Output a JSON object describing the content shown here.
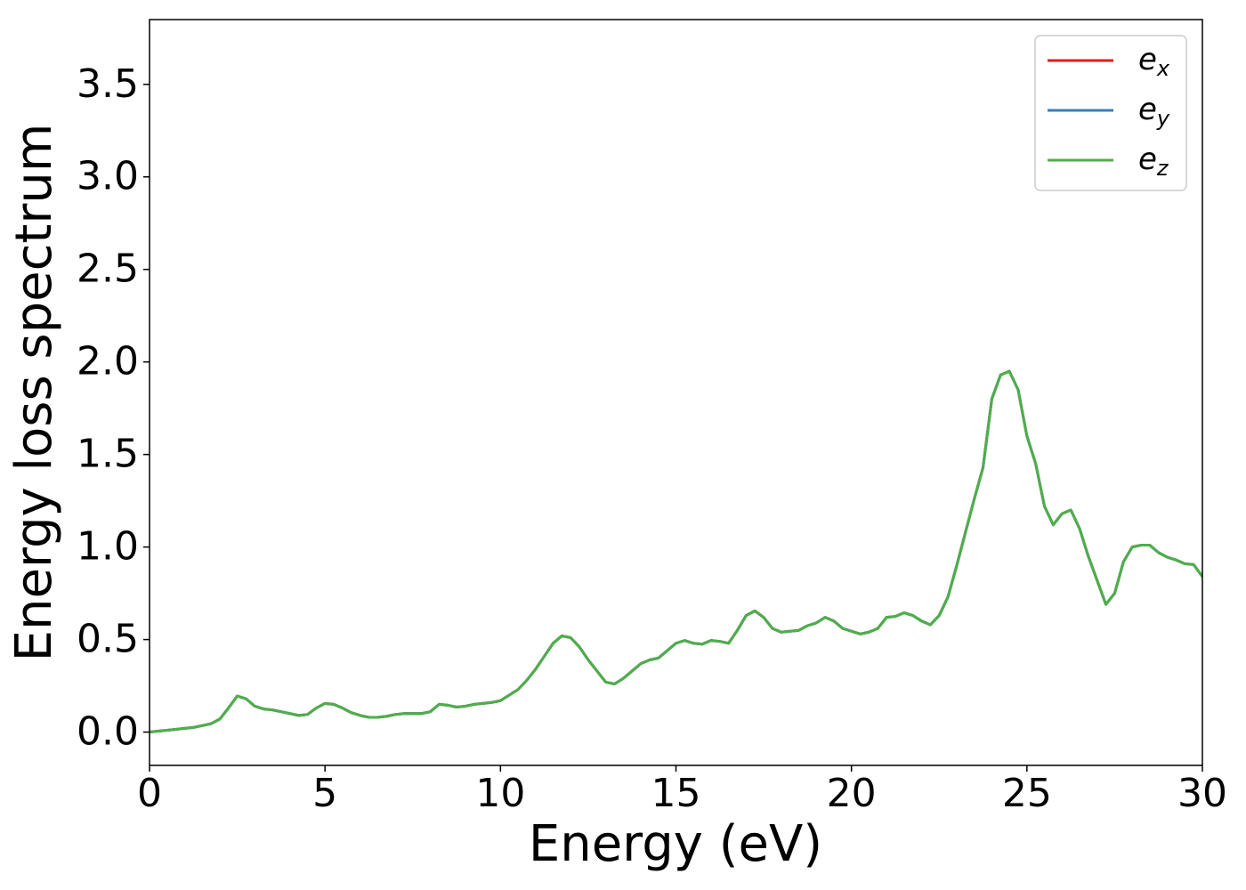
{
  "chart_data": {
    "type": "line",
    "xlabel": "Energy (eV)",
    "ylabel": "Energy loss spectrum",
    "x": [
      0,
      0.25,
      0.5,
      0.75,
      1,
      1.25,
      1.5,
      1.75,
      2,
      2.25,
      2.5,
      2.75,
      3,
      3.25,
      3.5,
      3.75,
      4,
      4.25,
      4.5,
      4.75,
      5,
      5.25,
      5.5,
      5.75,
      6,
      6.25,
      6.5,
      6.75,
      7,
      7.25,
      7.5,
      7.75,
      8,
      8.25,
      8.5,
      8.75,
      9,
      9.25,
      9.5,
      9.75,
      10,
      10.25,
      10.5,
      10.75,
      11,
      11.25,
      11.5,
      11.75,
      12,
      12.25,
      12.5,
      12.75,
      13,
      13.25,
      13.5,
      13.75,
      14,
      14.25,
      14.5,
      14.75,
      15,
      15.25,
      15.5,
      15.75,
      16,
      16.25,
      16.5,
      16.75,
      17,
      17.25,
      17.5,
      17.75,
      18,
      18.25,
      18.5,
      18.75,
      19,
      19.25,
      19.5,
      19.75,
      20,
      20.25,
      20.5,
      20.75,
      21,
      21.25,
      21.5,
      21.75,
      22,
      22.25,
      22.5,
      22.75,
      23,
      23.25,
      23.5,
      23.75,
      24,
      24.25,
      24.5,
      24.75,
      25,
      25.25,
      25.5,
      25.75,
      26,
      26.25,
      26.5,
      26.75,
      27,
      27.25,
      27.5,
      27.75,
      28,
      28.25,
      28.5,
      28.75,
      29,
      29.25,
      29.5,
      29.75,
      30
    ],
    "series": [
      {
        "name": "e_x",
        "color": "#e41a1c",
        "values": [
          0,
          0.005,
          0.01,
          0.015,
          0.02,
          0.025,
          0.035,
          0.045,
          0.07,
          0.13,
          0.195,
          0.18,
          0.14,
          0.125,
          0.12,
          0.11,
          0.1,
          0.09,
          0.095,
          0.13,
          0.155,
          0.15,
          0.13,
          0.105,
          0.09,
          0.08,
          0.08,
          0.085,
          0.095,
          0.1,
          0.1,
          0.1,
          0.11,
          0.15,
          0.145,
          0.135,
          0.14,
          0.15,
          0.155,
          0.16,
          0.17,
          0.2,
          0.23,
          0.28,
          0.34,
          0.41,
          0.48,
          0.52,
          0.51,
          0.46,
          0.39,
          0.33,
          0.27,
          0.26,
          0.29,
          0.33,
          0.37,
          0.39,
          0.4,
          0.44,
          0.48,
          0.495,
          0.48,
          0.475,
          0.495,
          0.49,
          0.48,
          0.55,
          0.63,
          0.655,
          0.62,
          0.56,
          0.54,
          0.545,
          0.55,
          0.575,
          0.59,
          0.62,
          0.6,
          0.56,
          0.545,
          0.53,
          0.54,
          0.56,
          0.62,
          0.625,
          0.645,
          0.63,
          0.6,
          0.58,
          0.63,
          0.73,
          0.9,
          1.08,
          1.26,
          1.43,
          1.8,
          1.93,
          1.95,
          1.85,
          1.6,
          1.45,
          1.22,
          1.12,
          1.18,
          1.2,
          1.1,
          0.95,
          0.82,
          0.69,
          0.75,
          0.92,
          1,
          1.01,
          1.01,
          0.97,
          0.945,
          0.93,
          0.91,
          0.905,
          0.84
        ]
      },
      {
        "name": "e_y",
        "color": "#377eb8",
        "values": [
          0,
          0.005,
          0.01,
          0.015,
          0.02,
          0.025,
          0.035,
          0.045,
          0.07,
          0.13,
          0.195,
          0.18,
          0.14,
          0.125,
          0.12,
          0.11,
          0.1,
          0.09,
          0.095,
          0.13,
          0.155,
          0.15,
          0.13,
          0.105,
          0.09,
          0.08,
          0.08,
          0.085,
          0.095,
          0.1,
          0.1,
          0.1,
          0.11,
          0.15,
          0.145,
          0.135,
          0.14,
          0.15,
          0.155,
          0.16,
          0.17,
          0.2,
          0.23,
          0.28,
          0.34,
          0.41,
          0.48,
          0.52,
          0.51,
          0.46,
          0.39,
          0.33,
          0.27,
          0.26,
          0.29,
          0.33,
          0.37,
          0.39,
          0.4,
          0.44,
          0.48,
          0.495,
          0.48,
          0.475,
          0.495,
          0.49,
          0.48,
          0.55,
          0.63,
          0.655,
          0.62,
          0.56,
          0.54,
          0.545,
          0.55,
          0.575,
          0.59,
          0.62,
          0.6,
          0.56,
          0.545,
          0.53,
          0.54,
          0.56,
          0.62,
          0.625,
          0.645,
          0.63,
          0.6,
          0.58,
          0.63,
          0.73,
          0.9,
          1.08,
          1.26,
          1.43,
          1.8,
          1.93,
          1.95,
          1.85,
          1.6,
          1.45,
          1.22,
          1.12,
          1.18,
          1.2,
          1.1,
          0.95,
          0.82,
          0.69,
          0.75,
          0.92,
          1,
          1.01,
          1.01,
          0.97,
          0.945,
          0.93,
          0.91,
          0.905,
          0.84
        ]
      },
      {
        "name": "e_z",
        "color": "#4daf4a",
        "values": [
          0,
          0.005,
          0.01,
          0.015,
          0.02,
          0.025,
          0.035,
          0.045,
          0.07,
          0.13,
          0.195,
          0.18,
          0.14,
          0.125,
          0.12,
          0.11,
          0.1,
          0.09,
          0.095,
          0.13,
          0.155,
          0.15,
          0.13,
          0.105,
          0.09,
          0.08,
          0.08,
          0.085,
          0.095,
          0.1,
          0.1,
          0.1,
          0.11,
          0.15,
          0.145,
          0.135,
          0.14,
          0.15,
          0.155,
          0.16,
          0.17,
          0.2,
          0.23,
          0.28,
          0.34,
          0.41,
          0.48,
          0.52,
          0.51,
          0.46,
          0.39,
          0.33,
          0.27,
          0.26,
          0.29,
          0.33,
          0.37,
          0.39,
          0.4,
          0.44,
          0.48,
          0.495,
          0.48,
          0.475,
          0.495,
          0.49,
          0.48,
          0.55,
          0.63,
          0.655,
          0.62,
          0.56,
          0.54,
          0.545,
          0.55,
          0.575,
          0.59,
          0.62,
          0.6,
          0.56,
          0.545,
          0.53,
          0.54,
          0.56,
          0.62,
          0.625,
          0.645,
          0.63,
          0.6,
          0.58,
          0.63,
          0.73,
          0.9,
          1.08,
          1.26,
          1.43,
          1.8,
          1.93,
          1.95,
          1.85,
          1.6,
          1.45,
          1.22,
          1.12,
          1.18,
          1.2,
          1.1,
          0.95,
          0.82,
          0.69,
          0.75,
          0.92,
          1,
          1.01,
          1.01,
          0.97,
          0.945,
          0.93,
          0.91,
          0.905,
          0.84
        ]
      }
    ],
    "xlim": [
      0,
      30
    ],
    "xticks": [
      0,
      5,
      10,
      15,
      20,
      25,
      30
    ],
    "ylim": [
      -0.18,
      3.85
    ],
    "yticks": [
      {
        "value": 0,
        "label": "0.0"
      },
      0.5,
      {
        "value": 1,
        "label": "1.0"
      },
      1.5,
      {
        "value": 2,
        "label": "2.0"
      },
      2.5,
      {
        "value": 3,
        "label": "3.0"
      },
      3.5
    ],
    "grid": false,
    "legend": "upper right"
  }
}
